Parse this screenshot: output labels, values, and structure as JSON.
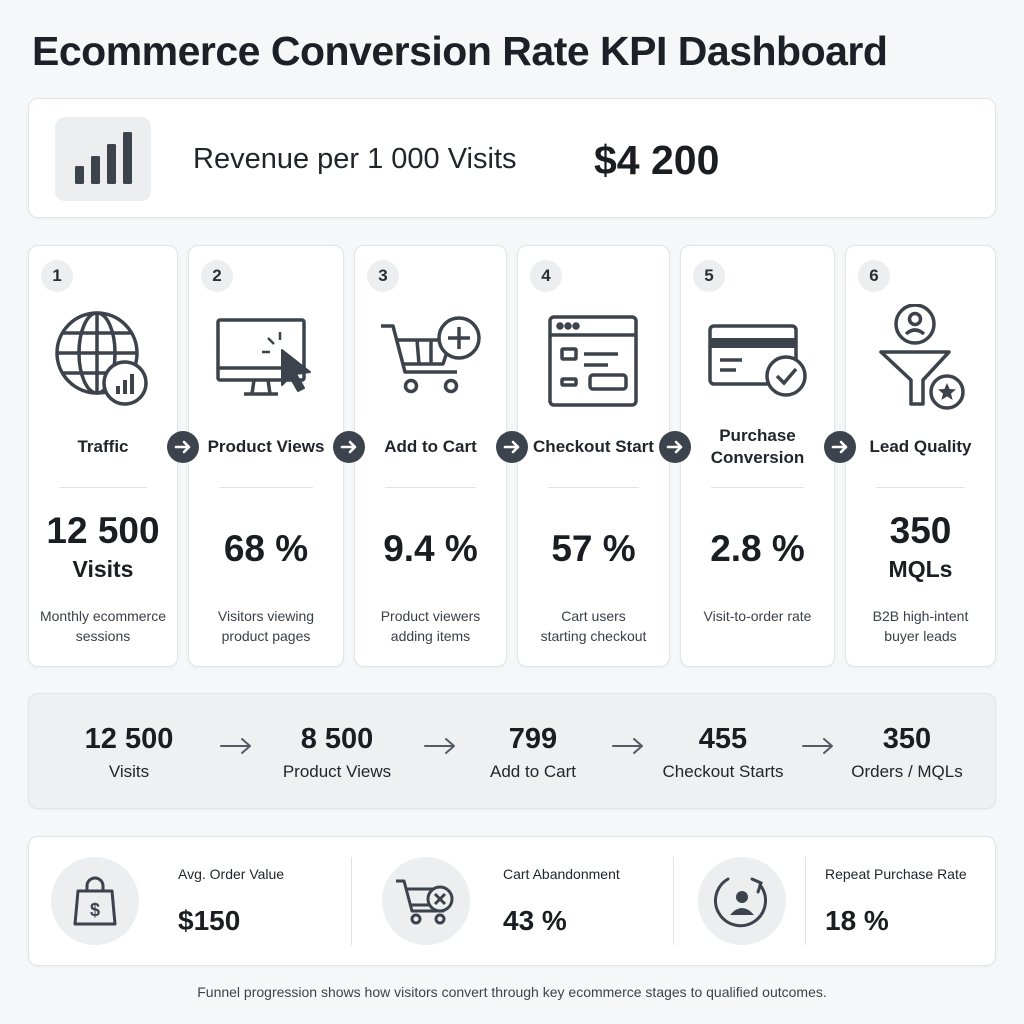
{
  "title": "Ecommerce Conversion Rate KPI Dashboard",
  "revenue": {
    "icon": "bar-chart-icon",
    "label": "Revenue per 1 000 Visits",
    "value": "$4 200"
  },
  "stages": [
    {
      "number": "1",
      "icon": "globe-chart-icon",
      "name": "Traffic",
      "value": "12 500",
      "unit": "Visits",
      "description_lines": [
        "Monthly ecommerce",
        "sessions"
      ]
    },
    {
      "number": "2",
      "icon": "monitor-cursor-icon",
      "name": "Product Views",
      "value": "68 %",
      "unit": "",
      "description_lines": [
        "Visitors viewing",
        "product pages"
      ]
    },
    {
      "number": "3",
      "icon": "cart-plus-icon",
      "name": "Add to Cart",
      "value": "9.4 %",
      "unit": "",
      "description_lines": [
        "Product viewers",
        "adding items"
      ]
    },
    {
      "number": "4",
      "icon": "checkout-form-icon",
      "name": "Checkout Start",
      "value": "57 %",
      "unit": "",
      "description_lines": [
        "Cart users",
        "starting checkout"
      ]
    },
    {
      "number": "5",
      "icon": "credit-card-check-icon",
      "name_lines": [
        "Purchase",
        "Conversion"
      ],
      "value": "2.8 %",
      "unit": "",
      "description_lines": [
        "Visit-to-order rate"
      ]
    },
    {
      "number": "6",
      "icon": "funnel-user-star-icon",
      "name": "Lead Quality",
      "value": "350",
      "unit": "MQLs",
      "description_lines": [
        "B2B high-intent",
        "buyer leads"
      ]
    }
  ],
  "funnel": [
    {
      "value": "12 500",
      "label": "Visits"
    },
    {
      "value": "8 500",
      "label": "Product Views"
    },
    {
      "value": "799",
      "label": "Add to Cart"
    },
    {
      "value": "455",
      "label": "Checkout Starts"
    },
    {
      "value": "350",
      "label": "Orders / MQLs"
    }
  ],
  "metrics": [
    {
      "icon": "shopping-bag-dollar-icon",
      "label": "Avg. Order Value",
      "value": "$150"
    },
    {
      "icon": "cart-x-icon",
      "label": "Cart Abandonment",
      "value": "43 %"
    },
    {
      "icon": "repeat-user-icon",
      "label": "Repeat Purchase Rate",
      "value": "18 %"
    }
  ],
  "footnote": "Funnel progression shows how visitors convert through key ecommerce stages to qualified outcomes.",
  "colors": {
    "background": "#f6f7f8",
    "card": "#ffffff",
    "icon_stroke": "#3d434c",
    "chevron": "#3d434c",
    "text": "#1a1d22"
  }
}
